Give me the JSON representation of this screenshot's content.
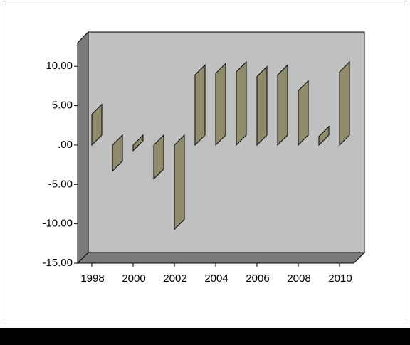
{
  "chart_data": {
    "type": "bar",
    "categories": [
      "1998",
      null,
      "2000",
      null,
      "2002",
      null,
      "2004",
      null,
      "2006",
      null,
      "2008",
      null,
      "2010"
    ],
    "values": [
      3.9,
      -3.3,
      -0.7,
      -4.3,
      -10.7,
      8.9,
      9.1,
      9.3,
      8.7,
      8.9,
      6.9,
      1.1,
      9.3
    ],
    "color": "#8f8b6b",
    "ylim": [
      -15,
      13
    ],
    "yticks": [
      {
        "value": -15,
        "label": "-15.00"
      },
      {
        "value": -10,
        "label": "-10.00"
      },
      {
        "value": -5,
        "label": "-5.00"
      },
      {
        "value": 0,
        "label": ".00"
      },
      {
        "value": 5,
        "label": "5.00"
      },
      {
        "value": 10,
        "label": "10.00"
      }
    ]
  }
}
